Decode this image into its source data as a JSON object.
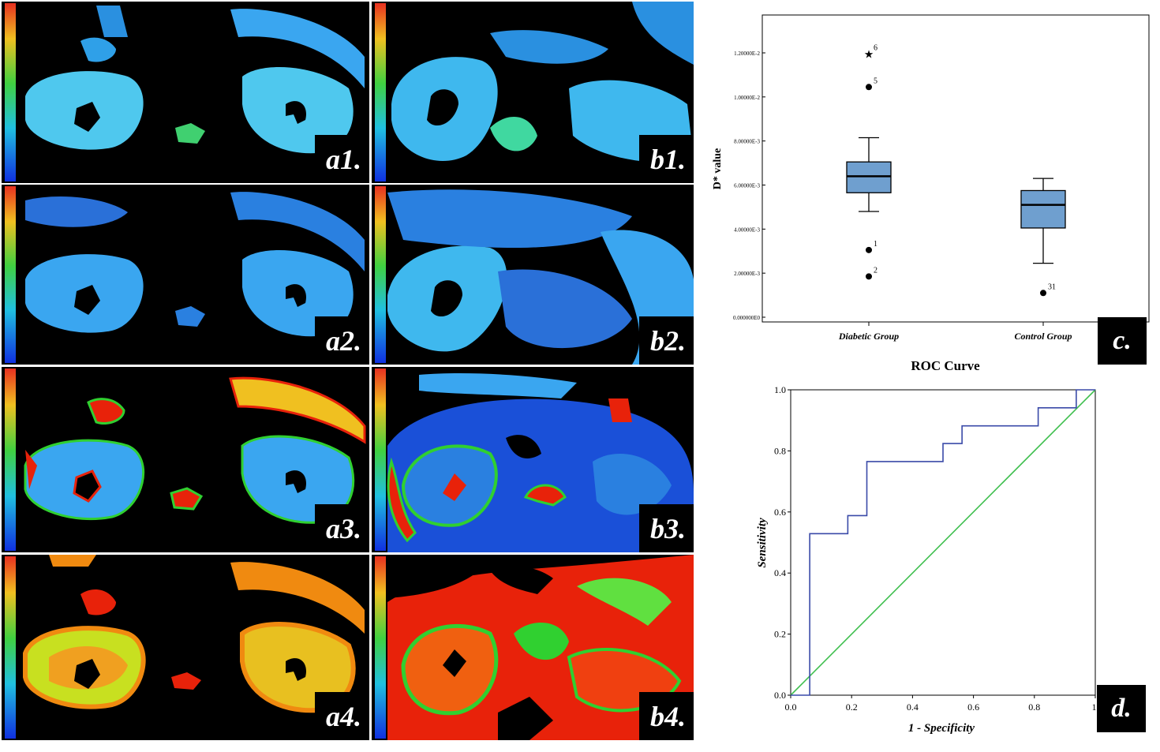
{
  "panels": [
    {
      "id": "a1",
      "label": "a1.",
      "map": "blue"
    },
    {
      "id": "b1",
      "label": "b1.",
      "map": "blue"
    },
    {
      "id": "a2",
      "label": "a2.",
      "map": "blue"
    },
    {
      "id": "b2",
      "label": "b2.",
      "map": "blue"
    },
    {
      "id": "a3",
      "label": "a3.",
      "map": "mixed"
    },
    {
      "id": "b3",
      "label": "b3.",
      "map": "mixed"
    },
    {
      "id": "a4",
      "label": "a4.",
      "map": "hot"
    },
    {
      "id": "b4",
      "label": "b4.",
      "map": "hot"
    }
  ],
  "colors": {
    "kidney_blue": "#3aa6f0",
    "kidney_cyan": "#4fd0e8",
    "hot_red": "#e8220a",
    "hot_orange": "#f08a10",
    "hot_yellow": "#e8e020",
    "hot_green": "#30d030",
    "box_fill": "#6f9fcf",
    "roc_curve": "#3a4aa8",
    "roc_ref": "#3fbf4f"
  },
  "chart_data": [
    {
      "type": "box",
      "panel_label": "c.",
      "title": "",
      "ylabel": "D* value",
      "categories": [
        "Diabetic Group",
        "Control Group"
      ],
      "ylim": [
        0,
        0.013
      ],
      "yticks": [
        "0.000000E0",
        "2.00000E-3",
        "4.00000E-3",
        "6.00000E-3",
        "8.00000E-3",
        "1.00000E-2",
        "1.20000E-2"
      ],
      "ytick_values": [
        0,
        0.002,
        0.004,
        0.006,
        0.008,
        0.01,
        0.012
      ],
      "boxes": [
        {
          "name": "Diabetic Group",
          "whisker_low": 0.0048,
          "q1": 0.00565,
          "median": 0.0064,
          "q3": 0.00705,
          "whisker_high": 0.00815,
          "outliers": [
            {
              "value": 0.01195,
              "label": "6",
              "marker": "star"
            },
            {
              "value": 0.01045,
              "label": "5",
              "marker": "dot"
            },
            {
              "value": 0.00305,
              "label": "1",
              "marker": "dot"
            },
            {
              "value": 0.00185,
              "label": "2",
              "marker": "dot"
            }
          ]
        },
        {
          "name": "Control Group",
          "whisker_low": 0.00245,
          "q1": 0.00405,
          "median": 0.0051,
          "q3": 0.00575,
          "whisker_high": 0.0063,
          "outliers": [
            {
              "value": 0.0011,
              "label": "31",
              "marker": "dot"
            }
          ]
        }
      ]
    },
    {
      "type": "line",
      "panel_label": "d.",
      "title": "ROC Curve",
      "xlabel": "1 - Specificity",
      "ylabel": "Sensitivity",
      "xlim": [
        0,
        1
      ],
      "ylim": [
        0,
        1
      ],
      "xticks": [
        "0.0",
        "0.2",
        "0.4",
        "0.6",
        "0.8",
        "1."
      ],
      "yticks": [
        "0.0",
        "0.2",
        "0.4",
        "0.6",
        "0.8",
        "1.0"
      ],
      "tick_values": [
        0,
        0.2,
        0.4,
        0.6,
        0.8,
        1.0
      ],
      "series": [
        {
          "name": "ROC",
          "x": [
            0,
            0.0625,
            0.0625,
            0.1875,
            0.1875,
            0.25,
            0.25,
            0.5,
            0.5,
            0.5625,
            0.5625,
            0.8125,
            0.8125,
            0.9375,
            0.9375,
            1.0
          ],
          "y": [
            0,
            0,
            0.529,
            0.529,
            0.588,
            0.588,
            0.765,
            0.765,
            0.824,
            0.824,
            0.882,
            0.882,
            0.941,
            0.941,
            1.0,
            1.0
          ]
        },
        {
          "name": "Reference",
          "x": [
            0,
            1
          ],
          "y": [
            0,
            1
          ]
        }
      ]
    }
  ]
}
